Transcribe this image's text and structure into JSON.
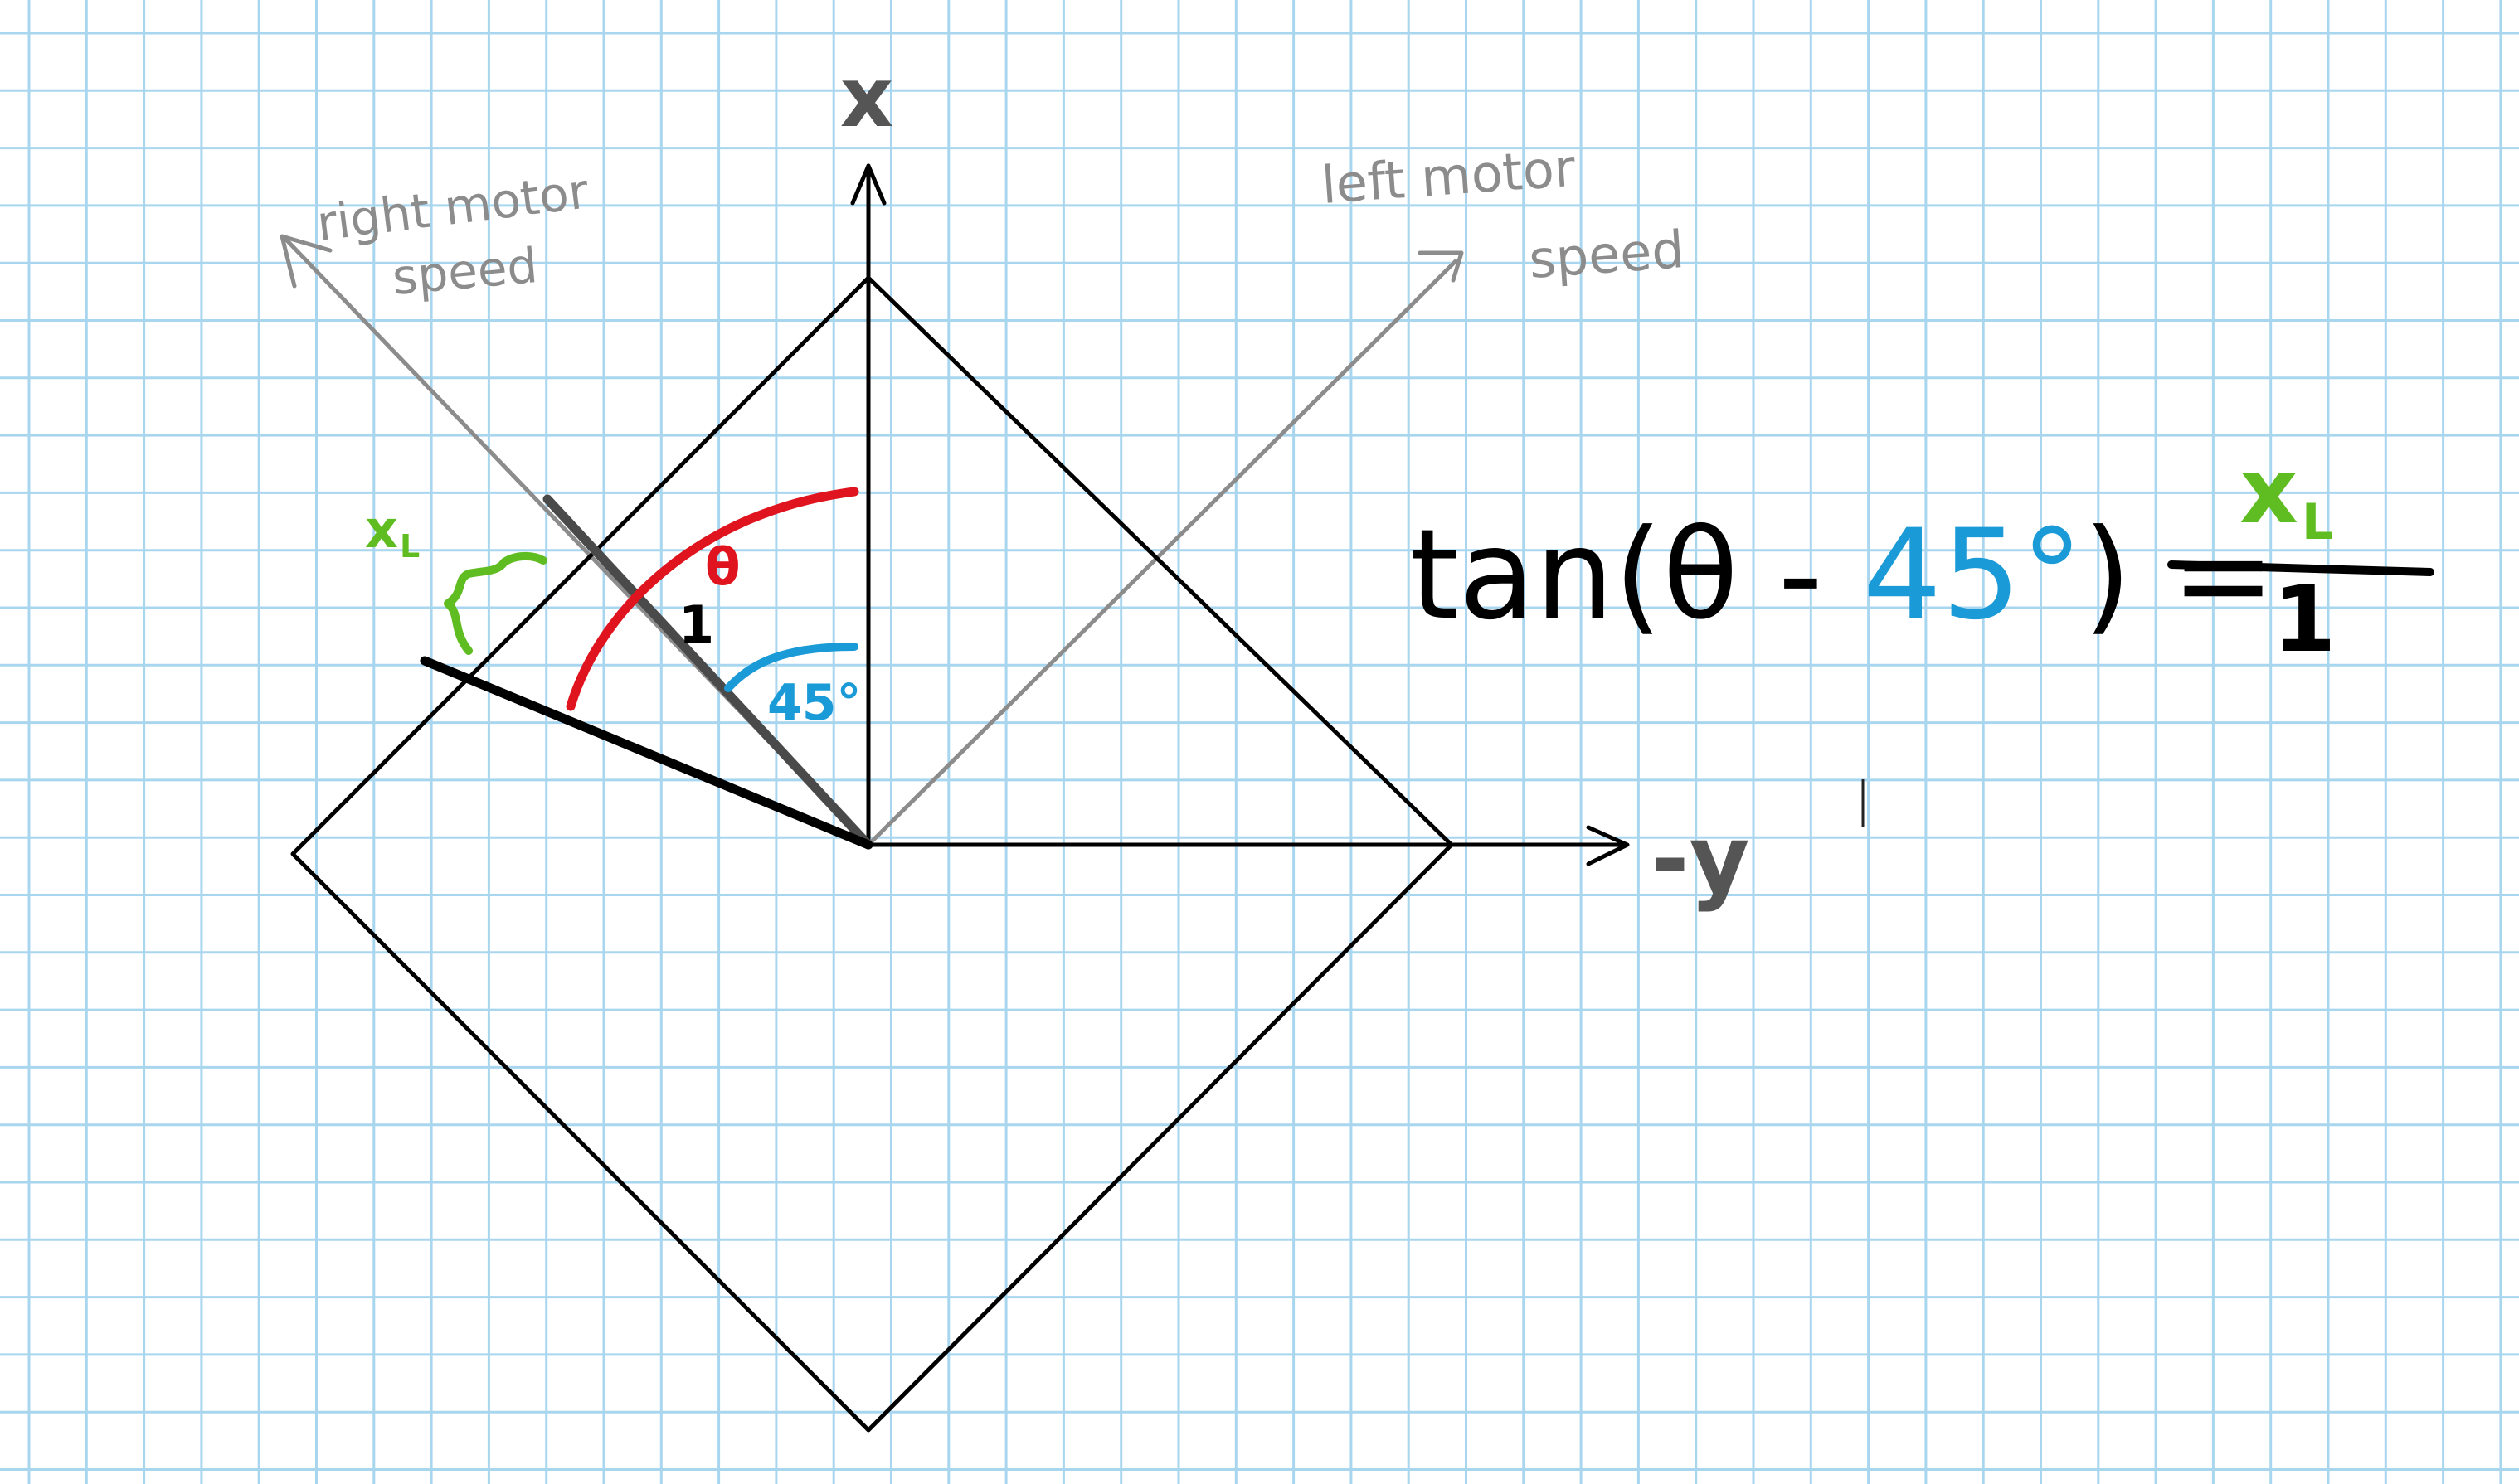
{
  "axis_labels": {
    "x": "x",
    "y": "-y"
  },
  "motor_labels": {
    "right_line1": "right motor",
    "right_line2": "speed",
    "left_line1": "left motor",
    "left_line2": "speed"
  },
  "diagram_labels": {
    "theta": "θ",
    "unit_length": "1",
    "angle": "45°",
    "offset": "x",
    "offset_subscript": "L"
  },
  "equation": {
    "function": "tan(",
    "theta": "θ",
    "minus": " - ",
    "angle": "45°",
    "close_equals": ") =",
    "numerator": "x",
    "numerator_subscript": "L",
    "denominator": "1"
  },
  "colors": {
    "grid": "#a9d6ef",
    "ink": "#000000",
    "gray": "#8c8c8c",
    "red": "#e0141e",
    "blue": "#1a9ad6",
    "green": "#5fbd22"
  }
}
